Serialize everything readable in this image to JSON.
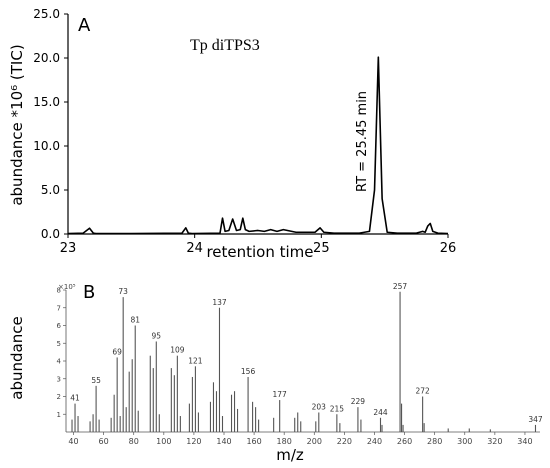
{
  "chart_data": [
    {
      "panel": "A",
      "type": "line",
      "title": "Tp diTPS3",
      "xlabel": "retention time",
      "ylabel": "abundance *10⁶ (TIC)",
      "xlim": [
        23,
        26
      ],
      "ylim": [
        0,
        25
      ],
      "xticks": [
        "23",
        "24",
        "25",
        "26"
      ],
      "yticks": [
        "0.0",
        "5.0",
        "10.0",
        "15.0",
        "20.0",
        "25.0"
      ],
      "annotation": "RT = 25.45 min",
      "series": [
        {
          "x": [
            23.0,
            23.12,
            23.17,
            23.2,
            23.22,
            23.5,
            23.9,
            23.93,
            23.95,
            23.98,
            24.2,
            24.22,
            24.24,
            24.27,
            24.3,
            24.33,
            24.36,
            24.38,
            24.4,
            24.43,
            24.5,
            24.55,
            24.6,
            24.65,
            24.7,
            24.8,
            24.95,
            24.99,
            25.02,
            25.1,
            25.3,
            25.38,
            25.42,
            25.45,
            25.48,
            25.52,
            25.6,
            25.75,
            25.8,
            25.82,
            25.84,
            25.86,
            25.88,
            25.92,
            26.0
          ],
          "y": [
            0.05,
            0.1,
            0.65,
            0.1,
            0.05,
            0.05,
            0.1,
            0.7,
            0.1,
            0.05,
            0.1,
            1.8,
            0.3,
            0.4,
            1.7,
            0.4,
            0.5,
            1.8,
            0.5,
            0.3,
            0.4,
            0.3,
            0.5,
            0.3,
            0.5,
            0.2,
            0.2,
            0.7,
            0.2,
            0.1,
            0.1,
            0.3,
            5.0,
            20.1,
            4.0,
            0.2,
            0.1,
            0.1,
            0.3,
            0.2,
            0.9,
            1.2,
            0.3,
            0.1,
            0.05
          ]
        }
      ]
    },
    {
      "panel": "B",
      "type": "bar",
      "xlabel": "m/z",
      "ylabel": "abundance",
      "y_scale_label": "×10⁵",
      "xlim": [
        35,
        350
      ],
      "ylim": [
        0,
        8
      ],
      "xticks": [
        "40",
        "60",
        "80",
        "100",
        "120",
        "140",
        "160",
        "180",
        "200",
        "220",
        "240",
        "260",
        "280",
        "300",
        "320",
        "340"
      ],
      "yticks": [
        "1",
        "2",
        "3",
        "4",
        "5",
        "6",
        "7",
        "8"
      ],
      "peaks": [
        {
          "mz": 39,
          "value": 0.7
        },
        {
          "mz": 41,
          "value": 1.6,
          "label": "41"
        },
        {
          "mz": 43,
          "value": 0.9
        },
        {
          "mz": 51,
          "value": 0.6
        },
        {
          "mz": 53,
          "value": 1.0
        },
        {
          "mz": 55,
          "value": 2.6,
          "label": "55"
        },
        {
          "mz": 57,
          "value": 0.7
        },
        {
          "mz": 65,
          "value": 0.8
        },
        {
          "mz": 67,
          "value": 2.1
        },
        {
          "mz": 69,
          "value": 4.2,
          "label": "69"
        },
        {
          "mz": 71,
          "value": 0.9
        },
        {
          "mz": 73,
          "value": 7.6,
          "label": "73"
        },
        {
          "mz": 75,
          "value": 1.4
        },
        {
          "mz": 77,
          "value": 3.4
        },
        {
          "mz": 79,
          "value": 4.1
        },
        {
          "mz": 81,
          "value": 6.0,
          "label": "81"
        },
        {
          "mz": 83,
          "value": 1.2
        },
        {
          "mz": 91,
          "value": 4.3
        },
        {
          "mz": 93,
          "value": 3.6
        },
        {
          "mz": 95,
          "value": 5.1,
          "label": "95"
        },
        {
          "mz": 97,
          "value": 1.0
        },
        {
          "mz": 105,
          "value": 3.6
        },
        {
          "mz": 107,
          "value": 3.2
        },
        {
          "mz": 109,
          "value": 4.3,
          "label": "109"
        },
        {
          "mz": 111,
          "value": 0.9
        },
        {
          "mz": 117,
          "value": 1.6
        },
        {
          "mz": 119,
          "value": 3.1
        },
        {
          "mz": 121,
          "value": 3.7,
          "label": "121"
        },
        {
          "mz": 123,
          "value": 1.1
        },
        {
          "mz": 131,
          "value": 1.7
        },
        {
          "mz": 133,
          "value": 2.8
        },
        {
          "mz": 135,
          "value": 2.3
        },
        {
          "mz": 137,
          "value": 7.0,
          "label": "137"
        },
        {
          "mz": 139,
          "value": 0.9
        },
        {
          "mz": 145,
          "value": 2.1
        },
        {
          "mz": 147,
          "value": 2.3
        },
        {
          "mz": 149,
          "value": 1.3
        },
        {
          "mz": 156,
          "value": 3.1,
          "label": "156"
        },
        {
          "mz": 159,
          "value": 1.7
        },
        {
          "mz": 161,
          "value": 1.4
        },
        {
          "mz": 163,
          "value": 0.7
        },
        {
          "mz": 173,
          "value": 0.8
        },
        {
          "mz": 177,
          "value": 1.8,
          "label": "177"
        },
        {
          "mz": 187,
          "value": 0.8
        },
        {
          "mz": 189,
          "value": 1.1
        },
        {
          "mz": 191,
          "value": 0.6
        },
        {
          "mz": 201,
          "value": 0.6
        },
        {
          "mz": 203,
          "value": 1.1,
          "label": "203"
        },
        {
          "mz": 215,
          "value": 1.0,
          "label": "215"
        },
        {
          "mz": 217,
          "value": 0.5
        },
        {
          "mz": 229,
          "value": 1.4,
          "label": "229"
        },
        {
          "mz": 231,
          "value": 0.7
        },
        {
          "mz": 244,
          "value": 0.8,
          "label": "244"
        },
        {
          "mz": 245,
          "value": 0.4
        },
        {
          "mz": 257,
          "value": 7.9,
          "label": "257"
        },
        {
          "mz": 258,
          "value": 1.6
        },
        {
          "mz": 259,
          "value": 0.4
        },
        {
          "mz": 272,
          "value": 2.0,
          "label": "272"
        },
        {
          "mz": 273,
          "value": 0.5
        },
        {
          "mz": 289,
          "value": 0.2
        },
        {
          "mz": 303,
          "value": 0.2
        },
        {
          "mz": 317,
          "value": 0.15
        },
        {
          "mz": 347,
          "value": 0.4,
          "label": "347"
        }
      ]
    }
  ]
}
